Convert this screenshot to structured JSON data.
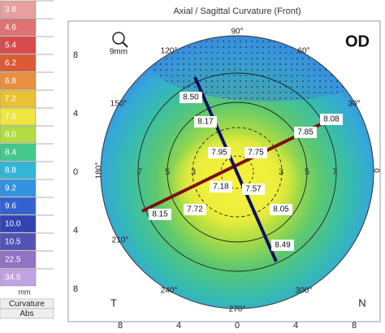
{
  "title": "Axial / Sagittal Curvature (Front)",
  "eye": "OD",
  "zoom": "9mm",
  "legend": {
    "values": [
      "3.8",
      "4.6",
      "5.4",
      "6.2",
      "6.8",
      "7.2",
      "7.6",
      "8.0",
      "8.4",
      "8.8",
      "9.2",
      "9.6",
      "10.0",
      "10.5",
      "22.5",
      "34.5"
    ],
    "colors": [
      "#e8a0a0",
      "#e07272",
      "#d84a4a",
      "#dc5a34",
      "#e8903e",
      "#e8c232",
      "#f0e63e",
      "#b2dc44",
      "#44c88e",
      "#32b6d6",
      "#3292e0",
      "#3262d0",
      "#3244b2",
      "#5452b4",
      "#9272c2",
      "#c2a2e2"
    ],
    "unit": "mm",
    "mode": [
      "Curvature",
      "Abs"
    ]
  },
  "axes": {
    "y_labels": [
      "8",
      "4",
      "0",
      "4",
      "8"
    ],
    "x_labels": [
      "8",
      "4",
      "0",
      "4",
      "8"
    ],
    "angles": [
      "90°",
      "60°",
      "30°",
      "0",
      "300°",
      "270°",
      "240°",
      "210°",
      "180°",
      "150°",
      "120°"
    ],
    "temporal": "T",
    "nasal": "N"
  },
  "ring_labels": [
    "7",
    "5",
    "3",
    "3",
    "5",
    "7"
  ],
  "readings": [
    "8.50",
    "8.17",
    "7.95",
    "7.75",
    "7.85",
    "8.08",
    "7.18",
    "7.57",
    "7.72",
    "8.15",
    "8.05",
    "8.49"
  ]
}
